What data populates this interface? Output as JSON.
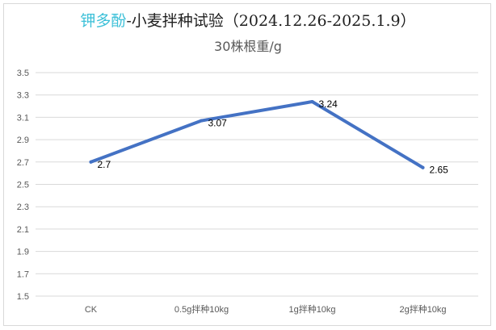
{
  "title": {
    "accent": "钾多酚",
    "rest": "-小麦拌种试验（2024.12.26-2025.1.9）"
  },
  "subtitle": "30株根重/g",
  "colors": {
    "line": "#4472c4",
    "title_accent": "#3cc0d8",
    "grid": "#d9d9d9",
    "axis_text": "#595959",
    "label_text": "#000000"
  },
  "chart_data": {
    "type": "line",
    "categories": [
      "CK",
      "0.5g拌种10kg",
      "1g拌种10kg",
      "2g拌种10kg"
    ],
    "series": [
      {
        "values": [
          2.7,
          3.07,
          3.24,
          2.65
        ]
      }
    ],
    "data_labels": [
      "2.7",
      "3.07",
      "3.24",
      "2.65"
    ],
    "ylim": [
      1.5,
      3.5
    ],
    "yticks": [
      "1.5",
      "1.7",
      "1.9",
      "2.1",
      "2.3",
      "2.5",
      "2.7",
      "2.9",
      "3.1",
      "3.3",
      "3.5"
    ],
    "grid": true,
    "legend": "none"
  }
}
